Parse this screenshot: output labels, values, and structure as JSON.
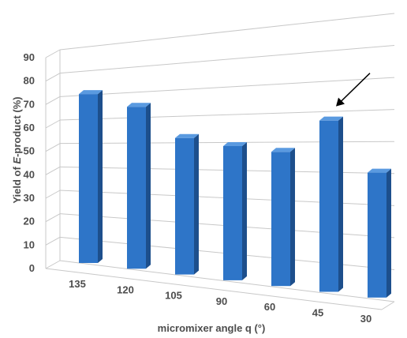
{
  "chart_data": {
    "type": "bar",
    "categories": [
      "135",
      "120",
      "105",
      "90",
      "60",
      "45",
      "30"
    ],
    "values": [
      73,
      70,
      59,
      58,
      58,
      74,
      54
    ],
    "xlabel": "micromixer angle q  (°)",
    "ylabel_prefix": "Yield of ",
    "ylabel_italic": "E",
    "ylabel_suffix": "-product (%)",
    "yticks": [
      "0",
      "10",
      "20",
      "30",
      "40",
      "50",
      "60",
      "70",
      "80",
      "90"
    ],
    "ylim": [
      0,
      90
    ],
    "grid": true,
    "projection": "3d",
    "highlight_arrow_category": "45",
    "colors": {
      "bar_front": "#2e75c8",
      "bar_side": "#1d4f8c",
      "bar_top": "#5a9ae0",
      "grid": "#c8c8c8",
      "text": "#4d4d4d",
      "arrow": "#000000"
    }
  }
}
